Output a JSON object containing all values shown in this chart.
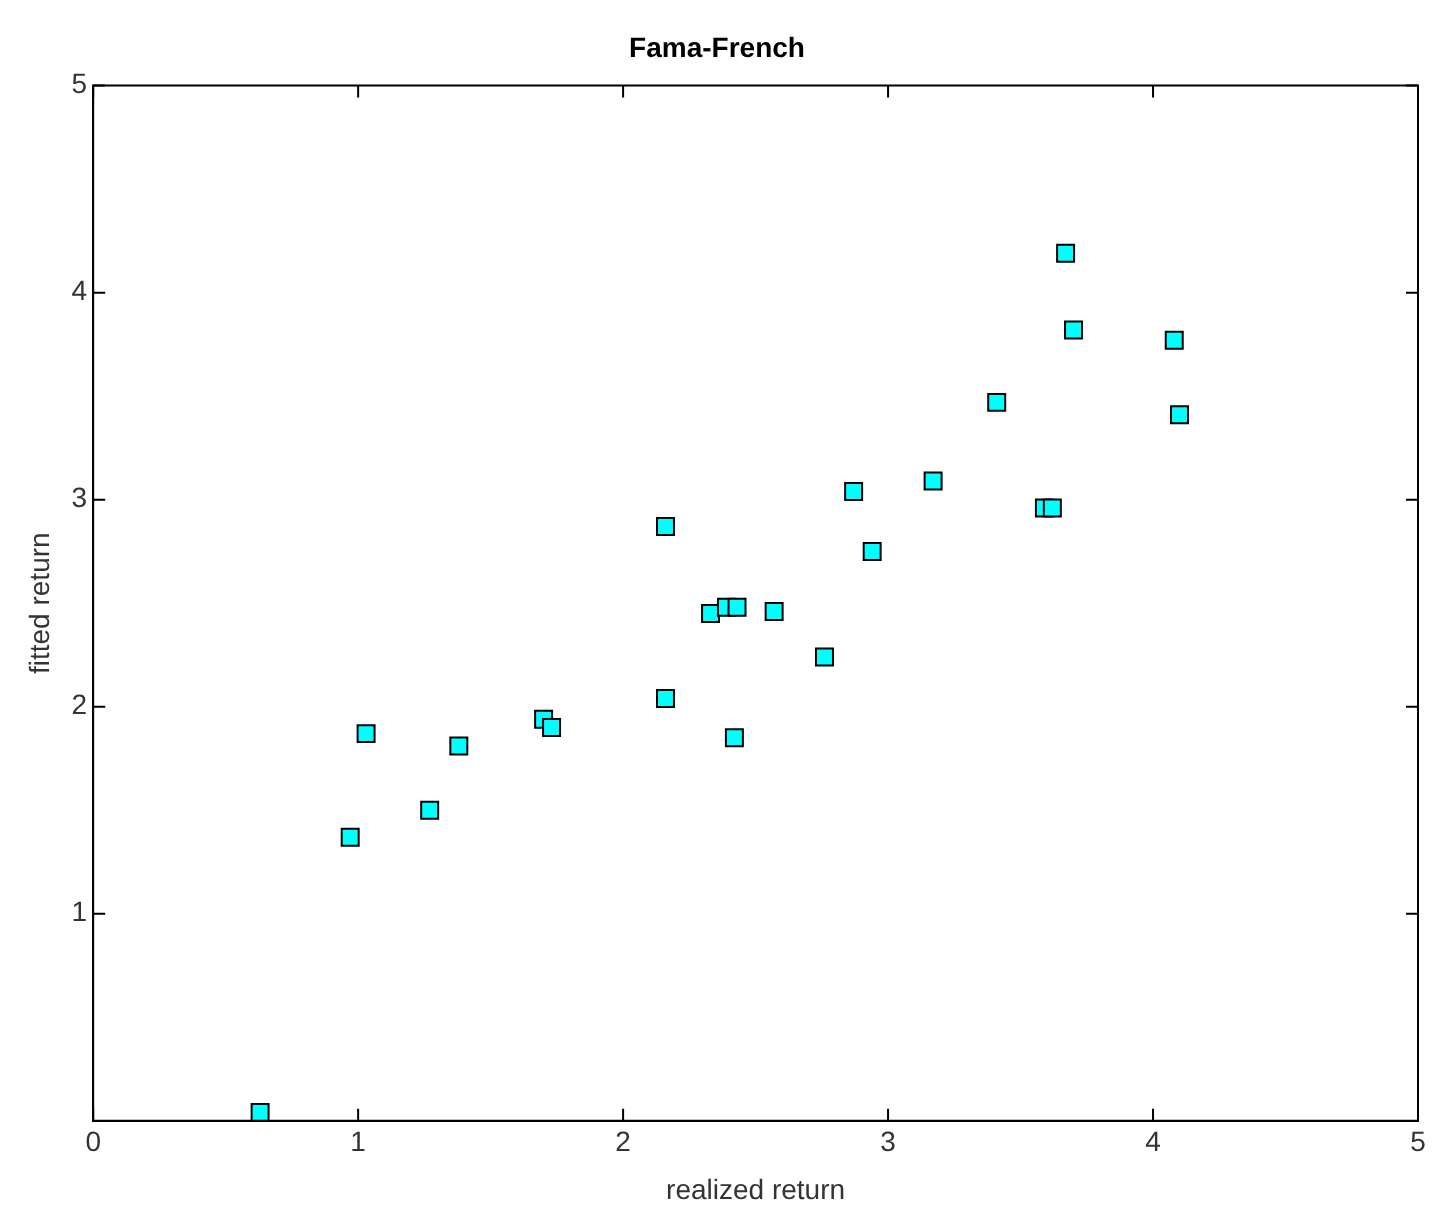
{
  "chart_data": {
    "type": "scatter",
    "title": "Fama-French",
    "xlabel": "realized return",
    "ylabel": "fitted return",
    "x": [
      0.63,
      0.97,
      1.03,
      1.27,
      1.38,
      1.7,
      1.73,
      2.16,
      2.16,
      2.33,
      2.39,
      2.43,
      2.42,
      2.57,
      2.76,
      2.87,
      2.94,
      3.17,
      3.41,
      3.59,
      3.62,
      3.67,
      3.7,
      4.08,
      4.1
    ],
    "values": [
      0.04,
      1.37,
      1.87,
      1.5,
      1.81,
      1.94,
      1.9,
      2.87,
      2.04,
      2.45,
      2.48,
      2.48,
      1.85,
      2.46,
      2.24,
      3.04,
      2.75,
      3.09,
      3.47,
      2.96,
      2.96,
      4.19,
      3.82,
      3.77,
      3.41
    ],
    "color": "#00ffff",
    "marker": "square",
    "grid": false,
    "legend": false,
    "xlim": [
      0,
      5
    ],
    "xticks": [
      0,
      1,
      2,
      3,
      4,
      5
    ],
    "ylim": [
      0,
      5
    ],
    "yticks": [
      1,
      2,
      3,
      4,
      5
    ]
  }
}
